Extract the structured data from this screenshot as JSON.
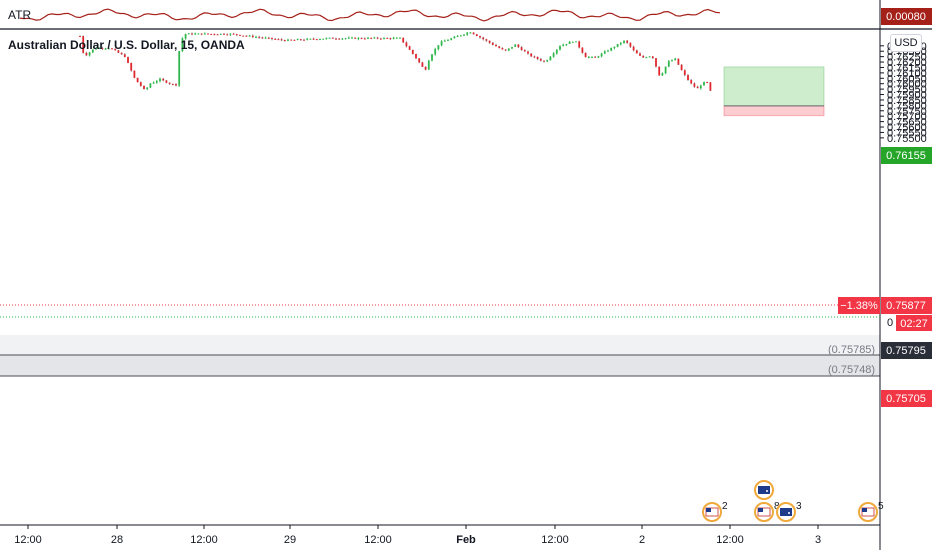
{
  "atr": {
    "label": "ATR",
    "value": "0.00080"
  },
  "symbol": {
    "title": "Australian Dollar / U.S. Dollar, 15, OANDA"
  },
  "currency_button": "USD",
  "colors": {
    "up": "#2fb74b",
    "down": "#e0262d",
    "wick_up": "#2fb74b",
    "wick_down": "#8a8a8a",
    "price_tag": "#f23645",
    "target_tag": "#26a629",
    "atr_line": "#a52019",
    "neutral_tag": "#2a2e39"
  },
  "chart_data": {
    "type": "candlestick",
    "ylim": [
      0.75455,
      0.7639
    ],
    "y_ticks": [
      "0.76350",
      "0.76300",
      "0.76250",
      "0.76200",
      "0.76150",
      "0.76100",
      "0.76050",
      "0.76000",
      "0.75950",
      "0.75900",
      "0.75850",
      "0.75800",
      "0.75750",
      "0.75700",
      "0.75650",
      "0.75600",
      "0.75550",
      "0.75500"
    ],
    "x_ticks": [
      "12:00",
      "28",
      "12:00",
      "29",
      "12:00",
      "Feb",
      "12:00",
      "2",
      "12:00",
      "3"
    ],
    "price_tags": {
      "target": "0.76155",
      "current": "0.75877",
      "change": "−1.38%",
      "countdown": "02:27",
      "entry": "0.75795",
      "stop": "0.75705",
      "partial_axis": "0"
    },
    "levels": {
      "level_a": "(0.75785)",
      "level_b": "(0.75748)"
    },
    "position_tool": {
      "entry": 0.75795,
      "target": 0.76155,
      "stop": 0.75705
    },
    "events": [
      {
        "flag": "US",
        "count": "2"
      },
      {
        "flag": "AU",
        "count": ""
      },
      {
        "flag": "US",
        "count": "8"
      },
      {
        "flag": "AU",
        "count": "3"
      },
      {
        "flag": "US",
        "count": "5"
      }
    ]
  }
}
